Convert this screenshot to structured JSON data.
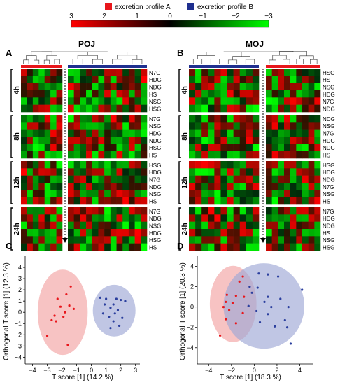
{
  "legend": {
    "profile_a": {
      "label": "excretion profile A",
      "color": "#e8161b"
    },
    "profile_b": {
      "label": "excretion profile B",
      "color": "#1f2f8f"
    }
  },
  "colorbar": {
    "ticks": [
      "3",
      "2",
      "1",
      "0",
      "−1",
      "−2",
      "−3"
    ],
    "colors": {
      "high": "#ff0000",
      "mid": "#000000",
      "low": "#00ff00"
    }
  },
  "panel_letters": {
    "A": "A",
    "B": "B",
    "C": "C",
    "D": "D"
  },
  "heatmaps": {
    "A": {
      "title": "POJ",
      "time_blocks": [
        {
          "time": "4h",
          "rows": [
            "N7G",
            "HDG",
            "NDG",
            "HS",
            "NSG",
            "HSG"
          ]
        },
        {
          "time": "8h",
          "rows": [
            "N7G",
            "NSG",
            "HDG",
            "NDG",
            "HSG",
            "HS"
          ]
        },
        {
          "time": "12h",
          "rows": [
            "HSG",
            "HDG",
            "N7G",
            "NDG",
            "NSG",
            "HS"
          ]
        },
        {
          "time": "24h",
          "rows": [
            "N7G",
            "NDG",
            "NSG",
            "HDG",
            "HSG",
            "HS"
          ]
        }
      ]
    },
    "B": {
      "title": "MOJ",
      "time_blocks": [
        {
          "time": "4h",
          "rows": [
            "HSG",
            "HS",
            "NSG",
            "HDG",
            "N7G",
            "NDG"
          ]
        },
        {
          "time": "8h",
          "rows": [
            "NDG",
            "NSG",
            "N7G",
            "HDG",
            "NDG",
            "HS"
          ]
        },
        {
          "time": "12h",
          "rows": [
            "HSG",
            "HDG",
            "NDG",
            "N7G",
            "NSG",
            "HS"
          ]
        },
        {
          "time": "24h",
          "rows": [
            "N7G",
            "HDG",
            "NDG",
            "HS",
            "NSG",
            "HSG"
          ]
        }
      ]
    }
  },
  "chart_data": [
    {
      "type": "scatter",
      "panel": "C",
      "xlabel": "T score [1] (14.2 %)",
      "ylabel": "Orthogonal T score [1] (12.3 %)",
      "xlim": [
        -4.5,
        3.3
      ],
      "ylim": [
        -4.6,
        5.0
      ],
      "xticks": [
        -4,
        -3,
        -2,
        -1,
        0,
        1,
        2,
        3
      ],
      "yticks": [
        -4,
        -3,
        -2,
        -1,
        0,
        1,
        2,
        3,
        4
      ],
      "series": [
        {
          "color": "#e8161b",
          "ellipse": {
            "cx": -1.95,
            "cy": 0.0,
            "rx": 1.7,
            "ry": 3.8,
            "color": "#f2a3a3"
          },
          "points": [
            [
              -1.4,
              2.3
            ],
            [
              -1.7,
              1.6
            ],
            [
              -2.3,
              1.2
            ],
            [
              -1.5,
              0.6
            ],
            [
              -2.1,
              0.5
            ],
            [
              -1.2,
              0.3
            ],
            [
              -1.8,
              0.0
            ],
            [
              -2.5,
              -0.3
            ],
            [
              -1.9,
              -0.4
            ],
            [
              -2.7,
              -0.7
            ],
            [
              -2.4,
              -0.8
            ],
            [
              -3.0,
              -2.1
            ],
            [
              -1.6,
              -2.9
            ]
          ]
        },
        {
          "color": "#2b3f9e",
          "ellipse": {
            "cx": 1.55,
            "cy": 0.15,
            "rx": 1.45,
            "ry": 2.3,
            "color": "#9ea7d6"
          },
          "points": [
            [
              0.6,
              1.3
            ],
            [
              1.0,
              1.2
            ],
            [
              1.7,
              1.2
            ],
            [
              2.0,
              1.1
            ],
            [
              2.3,
              1.0
            ],
            [
              0.9,
              0.7
            ],
            [
              1.5,
              0.7
            ],
            [
              1.3,
              0.4
            ],
            [
              1.8,
              0.2
            ],
            [
              0.8,
              -0.1
            ],
            [
              1.6,
              -0.1
            ],
            [
              1.2,
              -0.4
            ],
            [
              2.1,
              -0.5
            ],
            [
              1.5,
              -0.8
            ],
            [
              1.9,
              -1.2
            ],
            [
              1.3,
              -1.4
            ]
          ]
        }
      ]
    },
    {
      "type": "scatter",
      "panel": "D",
      "xlabel": "T score [1] (18.3 %)",
      "ylabel": "Orthogonal T score [1] (20.3 %)",
      "xlim": [
        -5.0,
        5.2
      ],
      "ylim": [
        -5.6,
        5.0
      ],
      "xticks": [
        -4,
        -2,
        0,
        2,
        4
      ],
      "yticks": [
        -4,
        -2,
        0,
        2,
        4
      ],
      "series": [
        {
          "color": "#e8161b",
          "ellipse": {
            "cx": -1.85,
            "cy": 0.3,
            "rx": 2.05,
            "ry": 3.75,
            "color": "#f2a3a3"
          },
          "points": [
            [
              -1.0,
              3.0
            ],
            [
              -1.3,
              2.5
            ],
            [
              -2.4,
              1.2
            ],
            [
              -1.6,
              1.1
            ],
            [
              -0.9,
              1.0
            ],
            [
              -2.5,
              0.5
            ],
            [
              -1.9,
              0.4
            ],
            [
              -2.7,
              0.0
            ],
            [
              -2.2,
              -0.3
            ],
            [
              -1.0,
              -0.6
            ],
            [
              -2.5,
              -1.2
            ],
            [
              -1.6,
              -1.6
            ],
            [
              -3.0,
              -2.8
            ]
          ]
        },
        {
          "color": "#2b3f9e",
          "ellipse": {
            "cx": 0.85,
            "cy": 0.1,
            "rx": 3.55,
            "ry": 4.2,
            "color": "#9ea7d6"
          },
          "points": [
            [
              0.4,
              3.3
            ],
            [
              1.2,
              3.2
            ],
            [
              2.1,
              3.0
            ],
            [
              -0.4,
              2.0
            ],
            [
              0.3,
              1.9
            ],
            [
              4.2,
              1.7
            ],
            [
              -0.2,
              1.4
            ],
            [
              1.2,
              1.0
            ],
            [
              2.3,
              0.8
            ],
            [
              0.9,
              0.5
            ],
            [
              -0.5,
              0.1
            ],
            [
              1.5,
              0.0
            ],
            [
              3.0,
              0.0
            ],
            [
              0.2,
              -0.4
            ],
            [
              1.2,
              -0.7
            ],
            [
              2.7,
              -1.3
            ],
            [
              0.5,
              -1.5
            ],
            [
              1.8,
              -1.9
            ],
            [
              2.9,
              -2.0
            ],
            [
              3.2,
              -3.6
            ]
          ]
        }
      ]
    }
  ]
}
